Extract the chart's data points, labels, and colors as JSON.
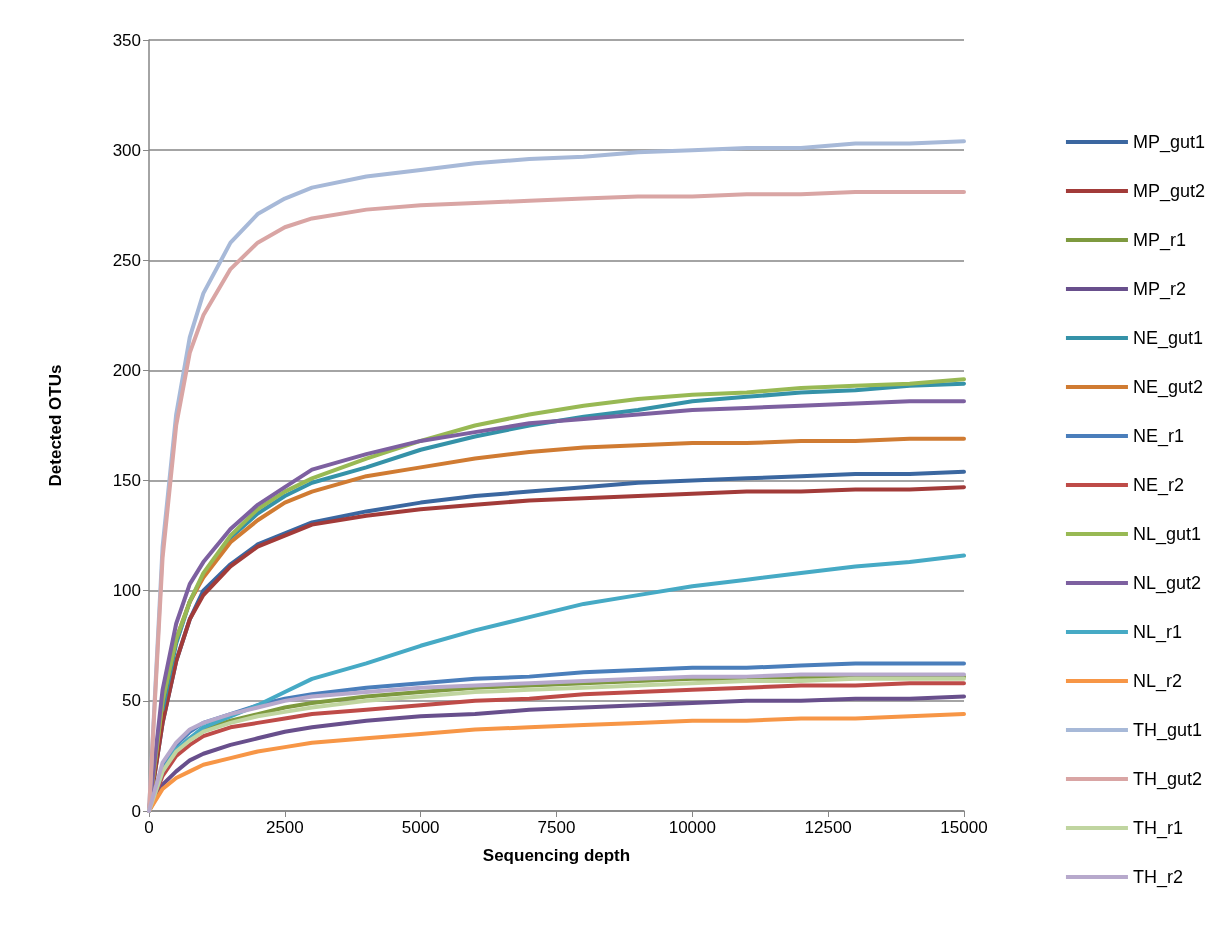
{
  "chart_data": {
    "type": "line",
    "xlabel": "Sequencing depth",
    "ylabel": "Detected OTUs",
    "xlim": [
      0,
      15000
    ],
    "xticks": [
      0,
      2500,
      5000,
      7500,
      10000,
      12500,
      15000
    ],
    "ylim": [
      0,
      350
    ],
    "yticks": [
      0,
      50,
      100,
      150,
      200,
      250,
      300,
      350
    ],
    "grid": "y",
    "legend": "right",
    "marker": "none",
    "line_style": "solid",
    "x": [
      0,
      250,
      500,
      750,
      1000,
      1500,
      2000,
      2500,
      3000,
      4000,
      5000,
      6000,
      7000,
      8000,
      9000,
      10000,
      11000,
      12000,
      13000,
      14000,
      15000
    ],
    "series": [
      {
        "name": "MP_gut1",
        "color": "#3b67a0",
        "values": [
          0,
          40,
          68,
          87,
          100,
          112,
          121,
          126,
          131,
          136,
          140,
          143,
          145,
          147,
          149,
          150,
          151,
          152,
          153,
          153,
          154
        ]
      },
      {
        "name": "MP_gut2",
        "color": "#a23b39",
        "values": [
          0,
          40,
          68,
          87,
          98,
          111,
          120,
          125,
          130,
          134,
          137,
          139,
          141,
          142,
          143,
          144,
          145,
          145,
          146,
          146,
          147
        ]
      },
      {
        "name": "MP_r1",
        "color": "#7e9a3f",
        "values": [
          0,
          18,
          27,
          33,
          37,
          41,
          44,
          47,
          49,
          52,
          54,
          56,
          57,
          58,
          59,
          60,
          60,
          61,
          61,
          61,
          61
        ]
      },
      {
        "name": "MP_r2",
        "color": "#684f8c",
        "values": [
          0,
          12,
          18,
          23,
          26,
          30,
          33,
          36,
          38,
          41,
          43,
          44,
          46,
          47,
          48,
          49,
          50,
          50,
          51,
          51,
          52
        ]
      },
      {
        "name": "NE_gut1",
        "color": "#3592a8",
        "values": [
          null,
          46,
          76,
          95,
          107,
          124,
          135,
          143,
          149,
          156,
          164,
          170,
          175,
          179,
          182,
          186,
          188,
          190,
          191,
          193,
          194
        ]
      },
      {
        "name": "NE_gut2",
        "color": "#d07b32",
        "values": [
          0,
          50,
          78,
          95,
          106,
          122,
          132,
          140,
          145,
          152,
          156,
          160,
          163,
          165,
          166,
          167,
          167,
          168,
          168,
          169,
          169
        ]
      },
      {
        "name": "NE_r1",
        "color": "#4a7ebb",
        "values": [
          0,
          20,
          30,
          36,
          40,
          44,
          48,
          51,
          53,
          56,
          58,
          60,
          61,
          63,
          64,
          65,
          65,
          66,
          67,
          67,
          67
        ]
      },
      {
        "name": "NE_r2",
        "color": "#be4b48",
        "values": [
          0,
          16,
          25,
          30,
          34,
          38,
          40,
          42,
          44,
          46,
          48,
          50,
          51,
          53,
          54,
          55,
          56,
          57,
          57,
          58,
          58
        ]
      },
      {
        "name": "NL_gut1",
        "color": "#98b954",
        "values": [
          0,
          50,
          78,
          95,
          108,
          125,
          137,
          145,
          151,
          160,
          168,
          175,
          180,
          184,
          187,
          189,
          190,
          192,
          193,
          194,
          196
        ]
      },
      {
        "name": "NL_gut2",
        "color": "#7d60a0",
        "values": [
          0,
          55,
          85,
          103,
          113,
          128,
          139,
          147,
          155,
          162,
          168,
          172,
          176,
          178,
          180,
          182,
          183,
          184,
          185,
          186,
          186
        ]
      },
      {
        "name": "NL_r1",
        "color": "#46aac5",
        "values": [
          0,
          18,
          28,
          33,
          38,
          43,
          48,
          54,
          60,
          67,
          75,
          82,
          88,
          94,
          98,
          102,
          105,
          108,
          111,
          113,
          116
        ]
      },
      {
        "name": "NL_r2",
        "color": "#f79646",
        "values": [
          0,
          10,
          15,
          18,
          21,
          24,
          27,
          29,
          31,
          33,
          35,
          37,
          38,
          39,
          40,
          41,
          41,
          42,
          42,
          43,
          44
        ]
      },
      {
        "name": "TH_gut1",
        "color": "#a7b9d8",
        "values": [
          0,
          120,
          180,
          215,
          235,
          258,
          271,
          278,
          283,
          288,
          291,
          294,
          296,
          297,
          299,
          300,
          301,
          301,
          303,
          303,
          304
        ]
      },
      {
        "name": "TH_gut2",
        "color": "#d9a5a4",
        "values": [
          0,
          115,
          175,
          208,
          225,
          246,
          258,
          265,
          269,
          273,
          275,
          276,
          277,
          278,
          279,
          279,
          280,
          280,
          281,
          281,
          281
        ]
      },
      {
        "name": "TH_r1",
        "color": "#c0d5a0",
        "values": [
          0,
          18,
          27,
          32,
          36,
          40,
          43,
          45,
          47,
          50,
          52,
          54,
          55,
          56,
          57,
          58,
          59,
          59,
          60,
          60,
          60
        ]
      },
      {
        "name": "TH_r2",
        "color": "#b7a9cc",
        "values": [
          0,
          22,
          31,
          37,
          40,
          44,
          47,
          50,
          52,
          54,
          56,
          57,
          58,
          59,
          60,
          61,
          61,
          62,
          62,
          62,
          62
        ]
      }
    ]
  }
}
